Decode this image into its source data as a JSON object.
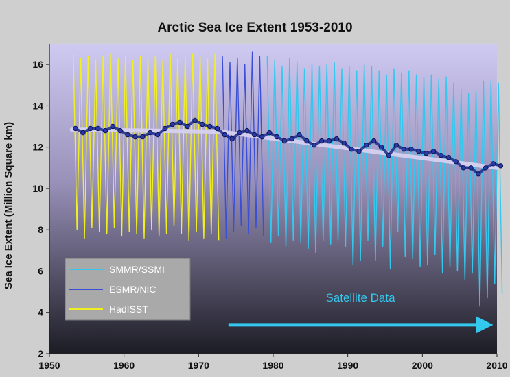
{
  "chart_data": {
    "type": "line",
    "title": "Arctic Sea Ice Extent 1953-2010",
    "xlabel": "",
    "ylabel": "Sea Ice Extent (Million Square km)",
    "xlim": [
      1950,
      2010
    ],
    "ylim": [
      2,
      17
    ],
    "xticks": [
      1950,
      1960,
      1970,
      1980,
      1990,
      2000,
      2010
    ],
    "yticks": [
      2,
      4,
      6,
      8,
      10,
      12,
      14,
      16
    ],
    "grid": false,
    "legend_position": "bottom-left",
    "colors": {
      "SMMR/SSMI": "#35c8ee",
      "ESMR/NIC": "#3a4fd6",
      "HadISST": "#f0f020",
      "annual_mean_marker": "#1a2a8a",
      "trend": "#d6d0f0"
    },
    "series": [
      {
        "name": "SMMR/SSMI",
        "years": [
          1979,
          1980,
          1981,
          1982,
          1983,
          1984,
          1985,
          1986,
          1987,
          1988,
          1989,
          1990,
          1991,
          1992,
          1993,
          1994,
          1995,
          1996,
          1997,
          1998,
          1999,
          2000,
          2001,
          2002,
          2003,
          2004,
          2005,
          2006,
          2007,
          2008,
          2009,
          2010
        ],
        "annual_max": [
          16.4,
          16.2,
          15.9,
          16.3,
          16.1,
          15.8,
          16.0,
          15.9,
          16.0,
          16.1,
          15.8,
          15.9,
          15.7,
          16.0,
          15.9,
          15.7,
          15.5,
          15.8,
          15.6,
          15.7,
          15.5,
          15.4,
          15.5,
          15.3,
          15.4,
          15.1,
          14.8,
          14.6,
          14.7,
          15.2,
          15.2,
          15.1
        ],
        "annual_min": [
          7.4,
          7.7,
          7.2,
          7.5,
          7.4,
          7.1,
          6.9,
          7.5,
          7.3,
          7.5,
          7.2,
          6.3,
          6.5,
          7.5,
          6.5,
          7.2,
          6.1,
          7.9,
          6.7,
          6.6,
          6.2,
          6.3,
          6.8,
          5.9,
          6.2,
          6.0,
          5.6,
          5.9,
          4.3,
          4.7,
          5.4,
          4.9
        ]
      },
      {
        "name": "ESMR/NIC",
        "years": [
          1973,
          1974,
          1975,
          1976,
          1977,
          1978
        ],
        "annual_max": [
          16.4,
          16.1,
          16.3,
          16.0,
          16.6,
          16.4
        ],
        "annual_min": [
          7.6,
          7.9,
          8.2,
          7.8,
          8.1,
          7.7
        ]
      },
      {
        "name": "HadISST",
        "years": [
          1953,
          1954,
          1955,
          1956,
          1957,
          1958,
          1959,
          1960,
          1961,
          1962,
          1963,
          1964,
          1965,
          1966,
          1967,
          1968,
          1969,
          1970,
          1971,
          1972
        ],
        "annual_max": [
          16.5,
          16.3,
          16.4,
          16.2,
          16.4,
          16.5,
          16.3,
          16.4,
          16.2,
          16.4,
          16.3,
          16.4,
          16.2,
          16.5,
          16.3,
          16.4,
          16.5,
          16.4,
          16.3,
          16.5
        ],
        "annual_min": [
          8.0,
          7.6,
          8.1,
          7.9,
          7.8,
          8.1,
          7.7,
          7.9,
          7.8,
          7.6,
          8.0,
          7.7,
          7.8,
          8.2,
          7.8,
          7.5,
          7.9,
          7.6,
          7.8,
          7.5
        ]
      }
    ],
    "annual_mean": {
      "x": [
        1953,
        1954,
        1955,
        1956,
        1957,
        1958,
        1959,
        1960,
        1961,
        1962,
        1963,
        1964,
        1965,
        1966,
        1967,
        1968,
        1969,
        1970,
        1971,
        1972,
        1973,
        1974,
        1975,
        1976,
        1977,
        1978,
        1979,
        1980,
        1981,
        1982,
        1983,
        1984,
        1985,
        1986,
        1987,
        1988,
        1989,
        1990,
        1991,
        1992,
        1993,
        1994,
        1995,
        1996,
        1997,
        1998,
        1999,
        2000,
        2001,
        2002,
        2003,
        2004,
        2005,
        2006,
        2007,
        2008,
        2009,
        2010
      ],
      "y": [
        12.9,
        12.7,
        12.9,
        12.9,
        12.8,
        13.0,
        12.8,
        12.6,
        12.5,
        12.5,
        12.7,
        12.6,
        12.9,
        13.1,
        13.2,
        13.0,
        13.3,
        13.1,
        13.0,
        12.9,
        12.6,
        12.4,
        12.7,
        12.8,
        12.6,
        12.5,
        12.7,
        12.5,
        12.3,
        12.4,
        12.6,
        12.3,
        12.1,
        12.3,
        12.3,
        12.4,
        12.2,
        11.9,
        11.8,
        12.1,
        12.3,
        12.0,
        11.6,
        12.1,
        11.9,
        11.9,
        11.8,
        11.7,
        11.8,
        11.6,
        11.5,
        11.3,
        11.0,
        11.0,
        10.7,
        11.0,
        11.2,
        11.1
      ]
    },
    "trend": {
      "x": [
        1953,
        1973,
        2010
      ],
      "y": [
        12.85,
        12.75,
        11.0
      ]
    },
    "annotation": "Satellite Data",
    "annotation_arrow": {
      "x_start": 1974,
      "x_end": 2010,
      "y": 3.4
    }
  }
}
